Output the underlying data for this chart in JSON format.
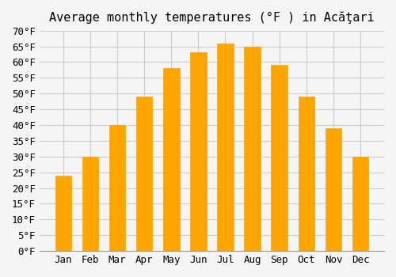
{
  "title": "Average monthly temperatures (°F ) in Acăţari",
  "months": [
    "Jan",
    "Feb",
    "Mar",
    "Apr",
    "May",
    "Jun",
    "Jul",
    "Aug",
    "Sep",
    "Oct",
    "Nov",
    "Dec"
  ],
  "values": [
    24,
    30,
    40,
    49,
    58,
    63,
    66,
    65,
    59,
    49,
    39,
    30
  ],
  "bar_color": "#FFA500",
  "bar_edge_color": "#E08000",
  "background_color": "#F5F5F5",
  "ylim": [
    0,
    70
  ],
  "yticks": [
    0,
    5,
    10,
    15,
    20,
    25,
    30,
    35,
    40,
    45,
    50,
    55,
    60,
    65,
    70
  ],
  "ylabel_suffix": "°F",
  "grid_color": "#CCCCCC",
  "title_fontsize": 11,
  "tick_fontsize": 9,
  "font_family": "monospace"
}
